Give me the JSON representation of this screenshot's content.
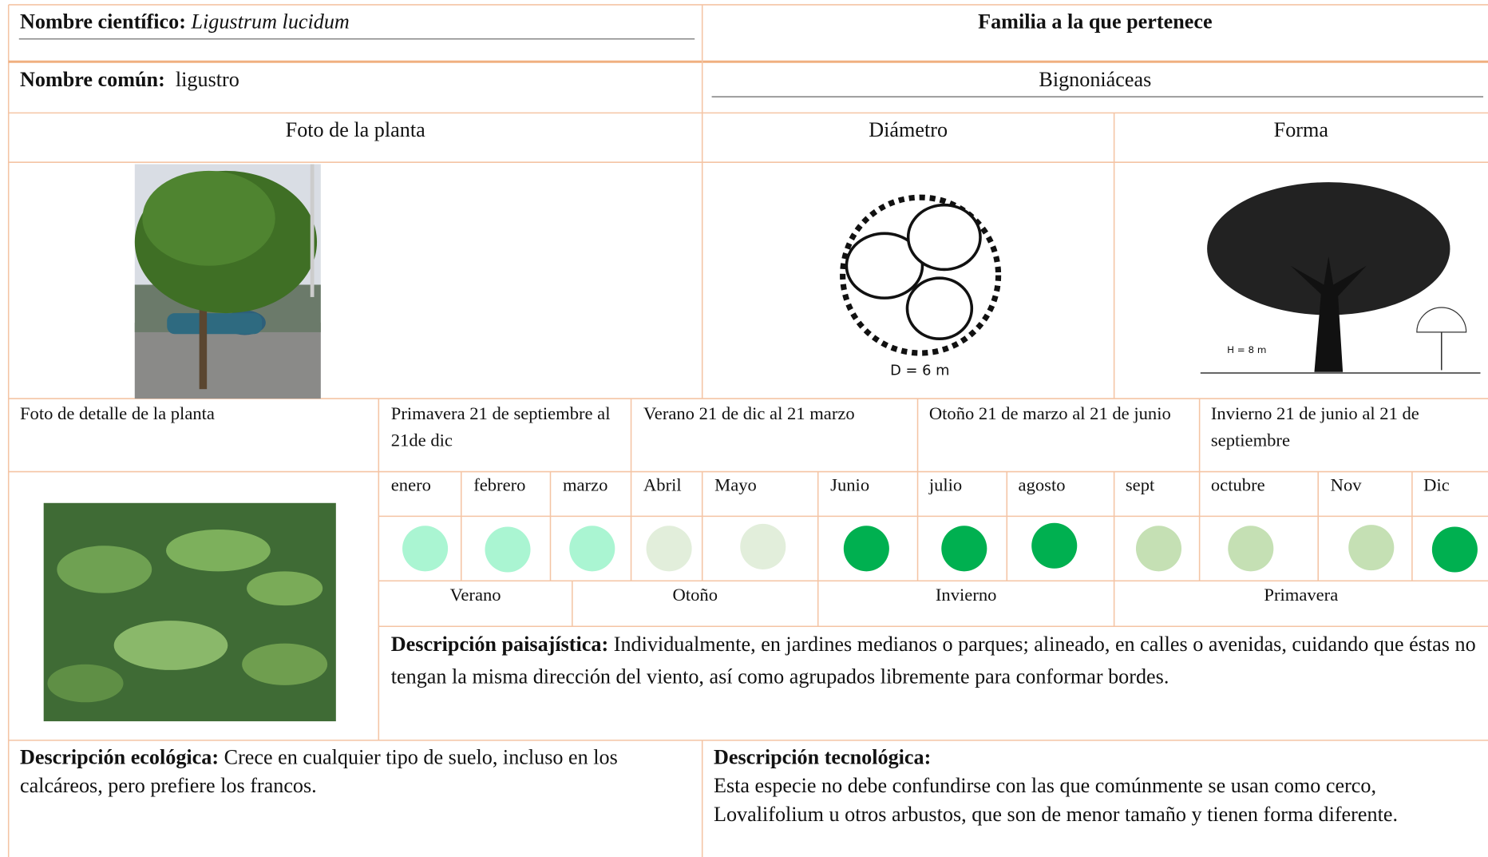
{
  "header": {
    "scientific_name_label": "Nombre científico:",
    "scientific_name": "Ligustrum lucidum",
    "family_label": "Familia a la que pertenece",
    "common_name_label": "Nombre común:",
    "common_name": "ligustro",
    "family": "Bignoniáceas"
  },
  "images": {
    "photo_label": "Foto de la planta",
    "diameter_label": "Diámetro",
    "form_label": "Forma",
    "diameter_caption": "D = 6 m",
    "height_caption": "H = 8 m"
  },
  "calendar": {
    "detail_label": "Foto de detalle de la planta",
    "seasons_top": [
      "Primavera 21 de septiembre al 21de dic",
      "Verano 21 de dic al 21 marzo",
      "Otoño 21 de marzo al 21 de junio",
      "Invierno 21 de junio al 21 de septiembre"
    ],
    "months": [
      {
        "name": "enero",
        "color": "#aaf5d2"
      },
      {
        "name": "febrero",
        "color": "#aaf5d2"
      },
      {
        "name": "marzo",
        "color": "#aaf5d2"
      },
      {
        "name": "Abril",
        "color": "#e2eedb"
      },
      {
        "name": "Mayo",
        "color": "#e2eedb"
      },
      {
        "name": "Junio",
        "color": "#00b050"
      },
      {
        "name": "julio",
        "color": "#00b050"
      },
      {
        "name": "agosto",
        "color": "#00b050"
      },
      {
        "name": "sept",
        "color": "#c5e0b4"
      },
      {
        "name": "octubre",
        "color": "#c5e0b4"
      },
      {
        "name": "Nov",
        "color": "#c5e0b4"
      },
      {
        "name": "Dic",
        "color": "#00b050"
      }
    ],
    "seasons_bottom": [
      "Verano",
      "Otoño",
      "Invierno",
      "Primavera"
    ]
  },
  "descriptions": {
    "landscape_label": "Descripción paisajística:",
    "landscape": "Individualmente, en jardines medianos o parques; alineado, en calles o avenidas, cuidando que éstas no tengan la misma dirección del viento, así como agrupados libremente para conformar bordes.",
    "ecological_label": "Descripción ecológica:",
    "ecological": "Crece en cualquier tipo de suelo, incluso en los calcáreos, pero prefiere los francos.",
    "technological_label": "Descripción tecnológica:",
    "technological": "Esta especie no debe confundirse con las que comúnmente se usan como cerco, Lovalifolium u otros arbustos, que son de menor tamaño y tienen forma diferente."
  }
}
